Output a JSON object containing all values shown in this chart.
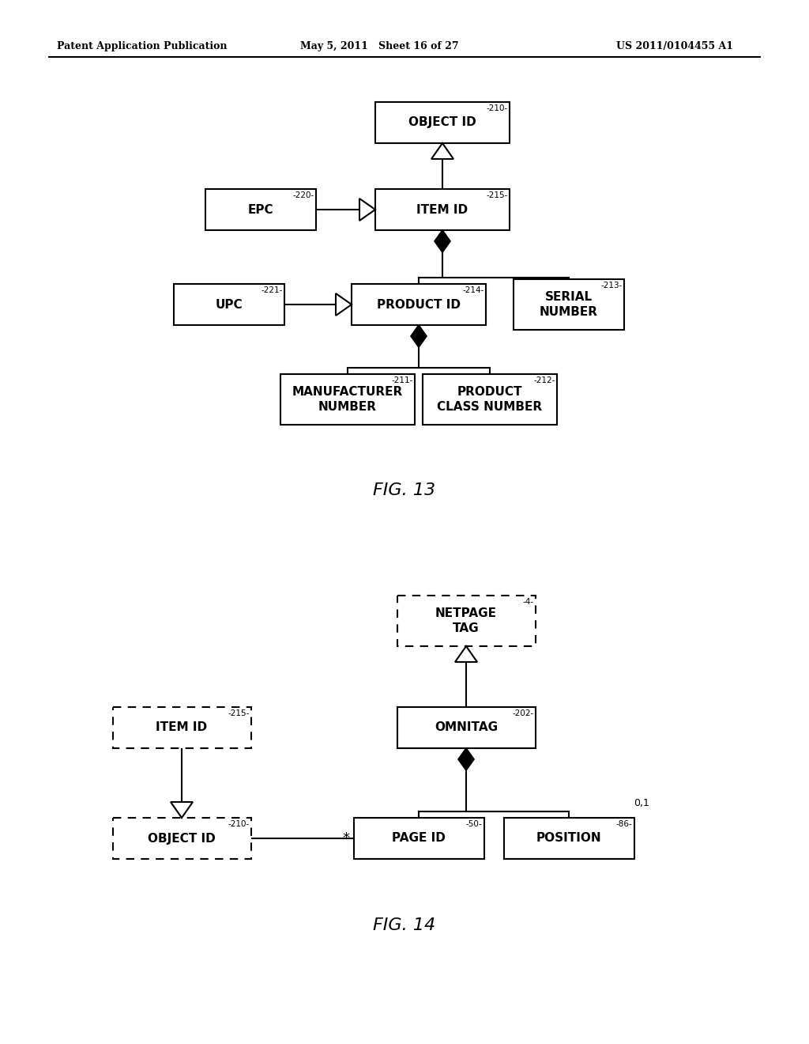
{
  "bg_color": "#ffffff",
  "header_left": "Patent Application Publication",
  "header_mid": "May 5, 2011   Sheet 16 of 27",
  "header_right": "US 2011/0104455 A1",
  "fig13_caption": "FIG. 13",
  "fig14_caption": "FIG. 14"
}
